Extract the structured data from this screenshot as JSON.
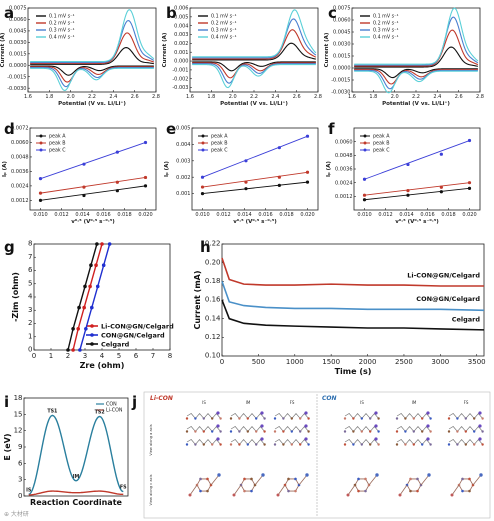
{
  "figure": {
    "panel_letters": [
      "a",
      "b",
      "c",
      "d",
      "e",
      "f",
      "g",
      "h",
      "i",
      "j"
    ],
    "watermark": "⊕ 大材研"
  },
  "chart_data": [
    {
      "id": "a",
      "type": "line",
      "xlabel": "Potential (V vs. Li/Li⁺)",
      "ylabel": "Current (A)",
      "xlim": [
        1.6,
        2.8
      ],
      "ylim": [
        -0.0035,
        0.0075
      ],
      "xticks": [
        "1.6",
        "1.8",
        "2.0",
        "2.2",
        "2.4",
        "2.6",
        "2.8"
      ],
      "yticks": [
        "-0.0030",
        "-0.0015",
        "0.0000",
        "0.0015",
        "0.0030",
        "0.0045",
        "0.0060",
        "0.0075"
      ],
      "legend": [
        "0.1 mV s⁻¹",
        "0.2 mV s⁻¹",
        "0.3 mV s⁻¹",
        "0.4 mV s⁻¹"
      ],
      "colors": [
        "#111111",
        "#c0392b",
        "#4a7fd0",
        "#5bd0d8"
      ],
      "peaks": {
        "C_x": 2.52,
        "C_y": [
          0.0022,
          0.004,
          0.0055,
          0.0068
        ],
        "A_x": 1.98,
        "A_y": [
          -0.0012,
          -0.002,
          -0.0025,
          -0.0029
        ],
        "B_x": 2.27,
        "B_y": [
          -0.0006,
          -0.001,
          -0.0013,
          -0.0015
        ]
      }
    },
    {
      "id": "b",
      "type": "line",
      "xlabel": "Potential (V vs. Li/Li⁺)",
      "ylabel": "Current (A)",
      "xlim": [
        1.6,
        2.8
      ],
      "ylim": [
        -0.0035,
        0.006
      ],
      "xticks": [
        "1.6",
        "1.8",
        "2.0",
        "2.2",
        "2.4",
        "2.6",
        "2.8"
      ],
      "yticks": [
        "-0.003",
        "-0.002",
        "-0.001",
        "0.000",
        "0.001",
        "0.002",
        "0.003",
        "0.004",
        "0.005",
        "0.006"
      ],
      "legend": [
        "0.1 mV s⁻¹",
        "0.2 mV s⁻¹",
        "0.3 mV s⁻¹",
        "0.4 mV s⁻¹"
      ],
      "colors": [
        "#111111",
        "#c0392b",
        "#4a7fd0",
        "#5bd0d8"
      ],
      "peaks": {
        "C_x": 2.55,
        "C_y": [
          0.0019,
          0.0033,
          0.0044,
          0.0053
        ],
        "A_x": 1.99,
        "A_y": [
          -0.001,
          -0.0017,
          -0.0022,
          -0.0026
        ],
        "B_x": 2.27,
        "B_y": [
          -0.0005,
          -0.0009,
          -0.0011,
          -0.0013
        ]
      }
    },
    {
      "id": "c",
      "type": "line",
      "xlabel": "Potential (V vs. Li/Li⁺)",
      "ylabel": "Current (A)",
      "xlim": [
        1.6,
        2.8
      ],
      "ylim": [
        -0.003,
        0.0075
      ],
      "xticks": [
        "1.6",
        "1.8",
        "2.0",
        "2.2",
        "2.4",
        "2.6",
        "2.8"
      ],
      "yticks": [
        "-0.0030",
        "-0.0015",
        "0.0000",
        "0.0015",
        "0.0030",
        "0.0045",
        "0.0060",
        "0.0075"
      ],
      "legend": [
        "0.1 mV s⁻¹",
        "0.2 mV s⁻¹",
        "0.3 mV s⁻¹",
        "0.4 mV s⁻¹"
      ],
      "colors": [
        "#111111",
        "#c0392b",
        "#4a7fd0",
        "#5bd0d8"
      ],
      "peaks": {
        "C_x": 2.53,
        "C_y": [
          0.0025,
          0.0045,
          0.006,
          0.007
        ],
        "A_x": 1.98,
        "A_y": [
          -0.0011,
          -0.0018,
          -0.0023,
          -0.0027
        ],
        "B_x": 2.26,
        "B_y": [
          -0.0005,
          -0.0009,
          -0.0011,
          -0.0013
        ]
      }
    },
    {
      "id": "d",
      "type": "scatter",
      "xlabel": "v⁰·⁵ (V⁰·⁵ s⁻⁰·⁵)",
      "ylabel": "Iₚ (A)",
      "xlim": [
        0.009,
        0.021
      ],
      "ylim": [
        0.0004,
        0.0072
      ],
      "xticks": [
        "0.010",
        "0.012",
        "0.014",
        "0.016",
        "0.018",
        "0.020"
      ],
      "yticks": [
        "0.0012",
        "0.0024",
        "0.0036",
        "0.0048",
        "0.0060",
        "0.0072"
      ],
      "x": [
        0.01,
        0.01414,
        0.01732,
        0.02
      ],
      "series": [
        {
          "name": "peak A",
          "values": [
            0.0012,
            0.0016,
            0.002,
            0.0024
          ],
          "color": "#111111"
        },
        {
          "name": "peak B",
          "values": [
            0.0018,
            0.0023,
            0.0027,
            0.0031
          ],
          "color": "#c0392b"
        },
        {
          "name": "peak C",
          "values": [
            0.003,
            0.0042,
            0.0052,
            0.006
          ],
          "color": "#3b3fd8"
        }
      ]
    },
    {
      "id": "e",
      "type": "scatter",
      "xlabel": "v⁰·⁵ (V⁰·⁵ s⁻⁰·⁵)",
      "ylabel": "Iₚ (A)",
      "xlim": [
        0.009,
        0.021
      ],
      "ylim": [
        0.0,
        0.005
      ],
      "xticks": [
        "0.010",
        "0.012",
        "0.014",
        "0.016",
        "0.018",
        "0.020"
      ],
      "yticks": [
        "0.001",
        "0.002",
        "0.003",
        "0.004",
        "0.005"
      ],
      "x": [
        0.01,
        0.01414,
        0.01732,
        0.02
      ],
      "series": [
        {
          "name": "peak A",
          "values": [
            0.001,
            0.0013,
            0.0015,
            0.0017
          ],
          "color": "#111111"
        },
        {
          "name": "peak B",
          "values": [
            0.0014,
            0.0017,
            0.002,
            0.0023
          ],
          "color": "#c0392b"
        },
        {
          "name": "peak C",
          "values": [
            0.002,
            0.003,
            0.0038,
            0.0045
          ],
          "color": "#3b3fd8"
        }
      ]
    },
    {
      "id": "f",
      "type": "scatter",
      "xlabel": "v⁰·⁵ (V⁰·⁵ s⁻⁰·⁵)",
      "ylabel": "Iₚ (A)",
      "xlim": [
        0.009,
        0.021
      ],
      "ylim": [
        0.0,
        0.0072
      ],
      "xticks": [
        "0.010",
        "0.012",
        "0.014",
        "0.016",
        "0.018",
        "0.020"
      ],
      "yticks": [
        "0.0012",
        "0.0024",
        "0.0036",
        "0.0048",
        "0.0060"
      ],
      "x": [
        0.01,
        0.01414,
        0.01732,
        0.02
      ],
      "series": [
        {
          "name": "peak A",
          "values": [
            0.0009,
            0.0013,
            0.0016,
            0.0019
          ],
          "color": "#111111"
        },
        {
          "name": "peak B",
          "values": [
            0.0013,
            0.0017,
            0.002,
            0.0024
          ],
          "color": "#c0392b"
        },
        {
          "name": "peak C",
          "values": [
            0.0027,
            0.004,
            0.0049,
            0.0061
          ],
          "color": "#3b3fd8"
        }
      ]
    },
    {
      "id": "g",
      "type": "line",
      "xlabel": "Zre (ohm)",
      "ylabel": "-Zim (ohm)",
      "xlim": [
        0,
        8
      ],
      "ylim": [
        0,
        8
      ],
      "xticks": [
        "0",
        "1",
        "2",
        "3",
        "4",
        "5",
        "6",
        "7",
        "8"
      ],
      "yticks": [
        "0",
        "1",
        "2",
        "3",
        "4",
        "5",
        "6",
        "7",
        "8"
      ],
      "series": [
        {
          "name": "Li-CON@GN/Celgard",
          "color": "#d02020",
          "x": [
            2.3,
            2.6,
            2.95,
            3.3,
            3.65,
            4.0
          ],
          "y": [
            0.0,
            1.6,
            3.2,
            4.8,
            6.4,
            8.0
          ]
        },
        {
          "name": "CON@GN/Celgard",
          "color": "#1f2fd0",
          "x": [
            2.7,
            3.05,
            3.4,
            3.75,
            4.1,
            4.45
          ],
          "y": [
            0.0,
            1.6,
            3.2,
            4.8,
            6.4,
            8.0
          ]
        },
        {
          "name": "Celgard",
          "color": "#111111",
          "x": [
            2.0,
            2.3,
            2.65,
            3.0,
            3.35,
            3.7
          ],
          "y": [
            0.0,
            1.6,
            3.2,
            4.8,
            6.4,
            8.0
          ]
        }
      ]
    },
    {
      "id": "h",
      "type": "line",
      "xlabel": "Time (s)",
      "ylabel": "Current (mA)",
      "xlim": [
        0,
        3600
      ],
      "ylim": [
        0.1,
        0.22
      ],
      "xticks": [
        "0",
        "500",
        "1000",
        "1500",
        "2000",
        "2500",
        "3000",
        "3500"
      ],
      "yticks": [
        "0.10",
        "0.12",
        "0.14",
        "0.16",
        "0.18",
        "0.20",
        "0.22"
      ],
      "x": [
        0,
        100,
        300,
        600,
        1000,
        1500,
        2000,
        2500,
        3000,
        3600
      ],
      "series": [
        {
          "name": "Li-CON@GN/Celgard",
          "color": "#c0392b",
          "values": [
            0.205,
            0.182,
            0.177,
            0.176,
            0.176,
            0.177,
            0.176,
            0.176,
            0.175,
            0.175
          ]
        },
        {
          "name": "CON@GN/Celgard",
          "color": "#4a90c8",
          "values": [
            0.18,
            0.158,
            0.154,
            0.152,
            0.151,
            0.151,
            0.15,
            0.15,
            0.15,
            0.149
          ]
        },
        {
          "name": "Celgard",
          "color": "#111111",
          "values": [
            0.16,
            0.14,
            0.135,
            0.133,
            0.132,
            0.131,
            0.13,
            0.13,
            0.129,
            0.128
          ]
        }
      ]
    },
    {
      "id": "i",
      "type": "line",
      "xlabel": "Reaction Coordinate",
      "ylabel": "E (eV)",
      "ylim": [
        0,
        18
      ],
      "yticks": [
        "0",
        "3",
        "6",
        "9",
        "12",
        "15",
        "18"
      ],
      "point_labels": [
        "IS",
        "TS1",
        "IM",
        "TS2",
        "FS"
      ],
      "x": [
        0,
        1,
        2,
        3,
        4
      ],
      "series": [
        {
          "name": "CON",
          "color": "#2a7f9e",
          "values": [
            0.3,
            14.8,
            2.8,
            14.6,
            0.8
          ]
        },
        {
          "name": "Li-CON",
          "color": "#c0392b",
          "values": [
            0.2,
            0.9,
            0.6,
            0.9,
            0.3
          ]
        }
      ]
    }
  ],
  "panel_j": {
    "titles": [
      "Li-CON",
      "CON"
    ],
    "column_labels": [
      "IS",
      "IM",
      "FS",
      "IS",
      "IM",
      "FS"
    ],
    "row_labels": [
      "View along a axis",
      "View along c axis"
    ]
  }
}
